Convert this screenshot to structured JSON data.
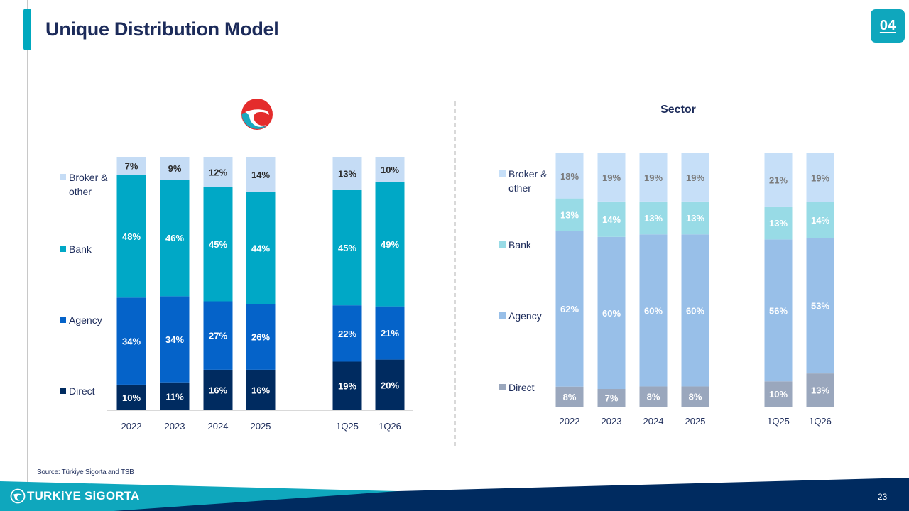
{
  "slide": {
    "title": "Unique Distribution Model",
    "section_number": "04",
    "page_number": "23",
    "source": "Source: Türkiye Sigorta and TSB",
    "brand_name": "TURKiYE SiGORTA",
    "logo_icon": "turkiye-sigorta-logo-icon"
  },
  "colors": {
    "accent": "#00a8be",
    "title": "#1c2b5a",
    "footer_dark": "#002b60",
    "footer_teal": "#0fa7bd"
  },
  "chart_data": [
    {
      "type": "bar",
      "stacked": true,
      "title": "",
      "header_icon": "turkiye-sigorta-logo-icon",
      "categories": [
        "2022",
        "2023",
        "2024",
        "2025",
        "1Q25",
        "1Q26"
      ],
      "ylim": [
        0,
        100
      ],
      "unit": "%",
      "grid": false,
      "legend_position": "left",
      "series": [
        {
          "name": "Direct",
          "color": "#002b60",
          "label_color": "#ffffff",
          "values": [
            10,
            11,
            16,
            16,
            19,
            20
          ]
        },
        {
          "name": "Agency",
          "color": "#0563c9",
          "label_color": "#ffffff",
          "values": [
            34,
            34,
            27,
            26,
            22,
            21
          ]
        },
        {
          "name": "Bank",
          "color": "#00a8c6",
          "label_color": "#ffffff",
          "values": [
            48,
            46,
            45,
            44,
            45,
            49
          ]
        },
        {
          "name": "Broker & other",
          "legend_lines": [
            "Broker &",
            "other"
          ],
          "color": "#c5dcf5",
          "label_color": "#2b2b2b",
          "values": [
            7,
            9,
            12,
            14,
            13,
            10
          ]
        }
      ]
    },
    {
      "type": "bar",
      "stacked": true,
      "title": "Sector",
      "categories": [
        "2022",
        "2023",
        "2024",
        "2025",
        "1Q25",
        "1Q26"
      ],
      "ylim": [
        0,
        100
      ],
      "unit": "%",
      "grid": false,
      "legend_position": "left",
      "series": [
        {
          "name": "Direct",
          "color": "#9aa7bd",
          "label_color": "#ffffff",
          "values": [
            8,
            7,
            8,
            8,
            10,
            13
          ]
        },
        {
          "name": "Agency",
          "color": "#98bfe8",
          "label_color": "#ffffff",
          "values": [
            62,
            60,
            60,
            60,
            56,
            53
          ]
        },
        {
          "name": "Bank",
          "color": "#98dbe6",
          "label_color": "#ffffff",
          "values": [
            13,
            14,
            13,
            13,
            13,
            14
          ]
        },
        {
          "name": "Broker & other",
          "legend_lines": [
            "Broker &",
            "other"
          ],
          "color": "#c6dff8",
          "label_color": "#7a7a7a",
          "values": [
            18,
            19,
            19,
            19,
            21,
            19
          ]
        }
      ]
    }
  ]
}
